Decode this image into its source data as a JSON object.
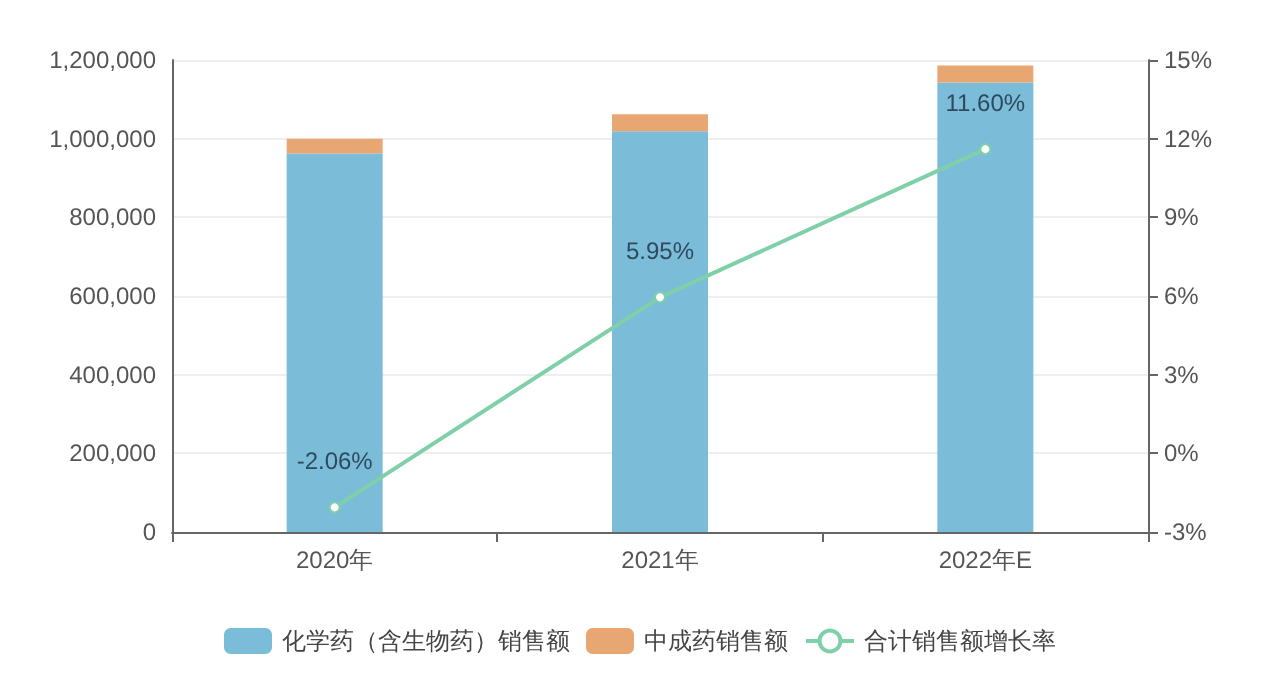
{
  "chart_data": {
    "type": "bar",
    "stacked": true,
    "categories": [
      "2020年",
      "2021年",
      "2022年E"
    ],
    "series": [
      {
        "name": "化学药（含生物药）销售额",
        "color": "#7bbcd9",
        "values": [
          962000,
          1019000,
          1143000
        ]
      },
      {
        "name": "中成药销售额",
        "color": "#e8a673",
        "values": [
          38000,
          43000,
          43000
        ]
      },
      {
        "name": "合计销售额增长率",
        "type": "line",
        "axis": "y2",
        "color": "#7fcfa9",
        "values": [
          -2.06,
          5.95,
          11.6
        ],
        "value_labels": [
          "-2.06%",
          "5.95%",
          "11.60%"
        ]
      }
    ],
    "ylim": [
      0,
      1200000
    ],
    "yticks": [
      {
        "value": 0,
        "label": "0"
      },
      {
        "value": 200000,
        "label": "200,000"
      },
      {
        "value": 400000,
        "label": "400,000"
      },
      {
        "value": 600000,
        "label": "600,000"
      },
      {
        "value": 800000,
        "label": "800,000"
      },
      {
        "value": 1000000,
        "label": "1,000,000"
      },
      {
        "value": 1200000,
        "label": "1,200,000"
      }
    ],
    "y2lim": [
      -3,
      15
    ],
    "y2ticks": [
      {
        "value": -3,
        "label": "-3%"
      },
      {
        "value": 0,
        "label": "0%"
      },
      {
        "value": 3,
        "label": "3%"
      },
      {
        "value": 6,
        "label": "6%"
      },
      {
        "value": 9,
        "label": "9%"
      },
      {
        "value": 12,
        "label": "12%"
      },
      {
        "value": 15,
        "label": "15%"
      }
    ],
    "grid": "y",
    "legend": "bottom",
    "marker": "circle"
  }
}
